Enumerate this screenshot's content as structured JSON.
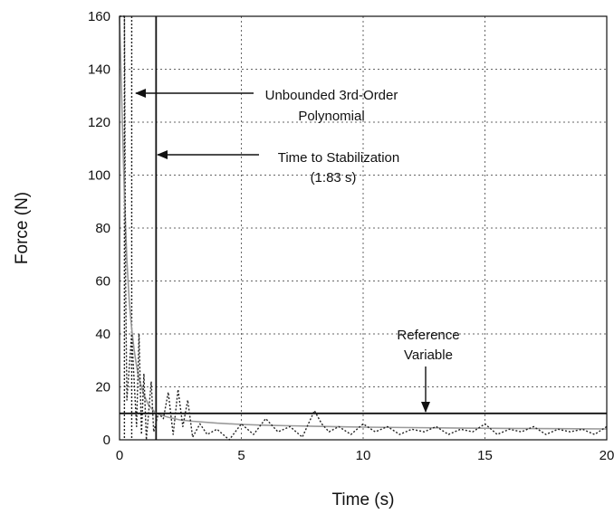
{
  "chart_data": {
    "type": "line",
    "xlabel": "Time (s)",
    "ylabel": "Force (N)",
    "xlim": [
      0,
      20
    ],
    "ylim": [
      0,
      160
    ],
    "xticks": [
      0,
      5,
      10,
      15,
      20
    ],
    "yticks": [
      0,
      20,
      40,
      60,
      80,
      100,
      120,
      140,
      160
    ],
    "grid": true,
    "series": [
      {
        "style": "solid-gray",
        "x": [
          0.0,
          0.1,
          0.2,
          0.3,
          0.4,
          0.5,
          0.6,
          0.7,
          0.8,
          1.0,
          1.2,
          1.5,
          2.0,
          2.5,
          3.0,
          4.0,
          5.0,
          6.0,
          7.0,
          8.0,
          10.0,
          12.0,
          14.0,
          16.0,
          18.0,
          20.0
        ],
        "y": [
          160,
          125,
          92,
          68,
          52,
          42,
          34,
          28,
          23,
          17,
          13,
          10,
          8.5,
          7.5,
          7,
          6.3,
          5.8,
          5.5,
          5.3,
          5.1,
          4.8,
          4.6,
          4.4,
          4.3,
          4.2,
          4.1
        ]
      },
      {
        "style": "dotted-black",
        "x": [
          0.0,
          0.1,
          0.15,
          0.2,
          0.25,
          0.3,
          0.5,
          0.7,
          0.8,
          0.9,
          1.0,
          1.1,
          1.3,
          1.4,
          1.6,
          1.8,
          2.0,
          2.2,
          2.4,
          2.6,
          2.8,
          3.0,
          3.3,
          3.6,
          4.0,
          4.5,
          5.0,
          5.5,
          6.0,
          6.5,
          7.0,
          7.5,
          8.0,
          8.3,
          8.6,
          9.0,
          9.5,
          10.0,
          10.5,
          11.0,
          11.5,
          12.0,
          12.5,
          13.0,
          13.5,
          14.0,
          14.5,
          15.0,
          15.5,
          16.0,
          16.5,
          17.0,
          17.5,
          18.0,
          18.5,
          19.0,
          19.5,
          20.0
        ],
        "y": [
          160,
          160,
          160,
          160,
          60,
          15,
          40,
          5,
          40,
          2,
          25,
          0,
          22,
          3,
          10,
          8,
          18,
          2,
          19,
          5,
          15,
          1,
          6,
          2,
          4,
          0,
          6,
          2,
          8,
          3,
          5,
          1,
          11,
          6,
          3,
          5,
          2,
          6,
          3,
          5,
          2,
          4,
          3,
          5,
          2,
          4,
          3,
          6,
          2,
          4,
          3,
          5,
          2,
          4,
          3,
          4,
          2,
          5
        ]
      },
      {
        "style": "solid-black",
        "x": [
          0,
          20
        ],
        "y": [
          10,
          10
        ]
      }
    ],
    "vlines": [
      {
        "style": "solid-black",
        "x": 1.5
      },
      {
        "style": "dotted-black",
        "x": 0.2
      },
      {
        "style": "dotted-black",
        "x": 0.5
      }
    ],
    "annotations": [
      {
        "id": "poly",
        "line1": "Unbounded 3rd-Order",
        "line2": "Polynomial"
      },
      {
        "id": "stab",
        "line1": "Time to Stabilization",
        "line2": "(1:83 s)"
      },
      {
        "id": "ref",
        "line1": "Reference",
        "line2": "Variable"
      }
    ]
  }
}
